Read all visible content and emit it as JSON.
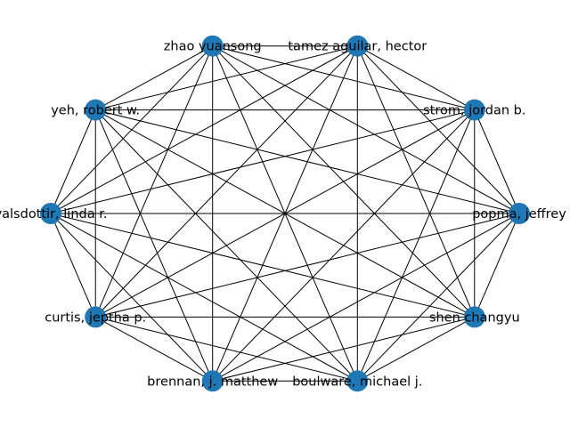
{
  "graph": {
    "layout": "circular",
    "complete_graph": true,
    "node_color": "#1f77b4",
    "edge_color": "#000000",
    "nodes": [
      {
        "label": "popma, jeffrey"
      },
      {
        "label": "strom, jordan b."
      },
      {
        "label": "tamez aguilar, hector"
      },
      {
        "label": "zhao yuansong"
      },
      {
        "label": "yeh, robert w."
      },
      {
        "label": "valsdottir, linda r."
      },
      {
        "label": "curtis, jeptha p."
      },
      {
        "label": "brennan, j. matthew"
      },
      {
        "label": "boulware, michael j."
      },
      {
        "label": "shen changyu"
      }
    ]
  }
}
